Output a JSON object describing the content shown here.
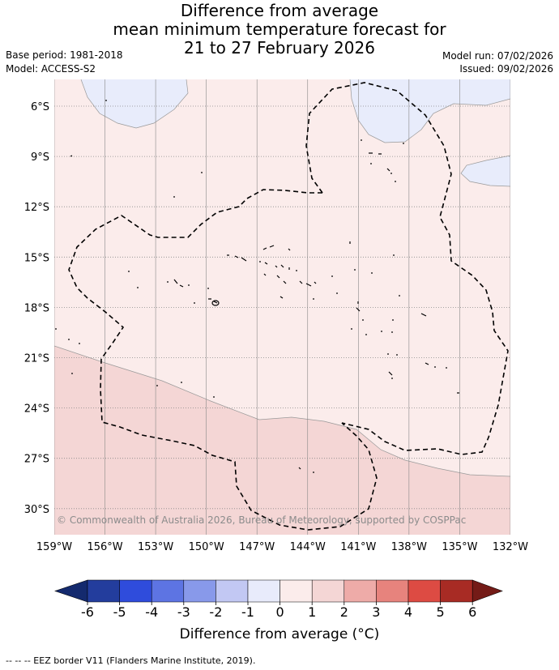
{
  "title": {
    "line1": "Difference from average",
    "line2": "mean minimum temperature forecast for",
    "line3": "21 to 27 February 2026"
  },
  "info": {
    "base_period": "Base period: 1981-2018",
    "model": "Model: ACCESS-S2",
    "model_run": "Model run: 07/02/2026",
    "issued": "Issued: 09/02/2026"
  },
  "map": {
    "lon_ticks": [
      "159°W",
      "156°W",
      "153°W",
      "150°W",
      "147°W",
      "144°W",
      "141°W",
      "138°W",
      "135°W",
      "132°W"
    ],
    "lat_ticks": [
      "6°S",
      "9°S",
      "12°S",
      "15°S",
      "18°S",
      "21°S",
      "24°S",
      "27°S",
      "30°S"
    ],
    "copyright": "© Commonwealth of Australia 2026, Bureau of Meteorology, supported by COSPPac",
    "colors": {
      "cool_minus1": "#e8ecfb",
      "warm_0_1": "#fbeceb",
      "warm_1_2": "#f4d6d5",
      "grid": "#888888",
      "eez": "#000000"
    }
  },
  "legend": {
    "ticks": [
      "-6",
      "-5",
      "-4",
      "-3",
      "-2",
      "-1",
      "0",
      "1",
      "2",
      "3",
      "4",
      "5",
      "6"
    ],
    "colors": [
      "#233d9d",
      "#2f4cdc",
      "#5d74e3",
      "#8899ea",
      "#c2c8f3",
      "#e8ebfb",
      "#fbeceb",
      "#f4d6d5",
      "#eeaba8",
      "#e7837d",
      "#dd4b43",
      "#a82b24"
    ],
    "extend_low_color": "#142a6e",
    "extend_high_color": "#741b17",
    "label": "Difference from average (°C)"
  },
  "footnote": "-- -- -- EEZ border V11 (Flanders Marine Institute, 2019)."
}
